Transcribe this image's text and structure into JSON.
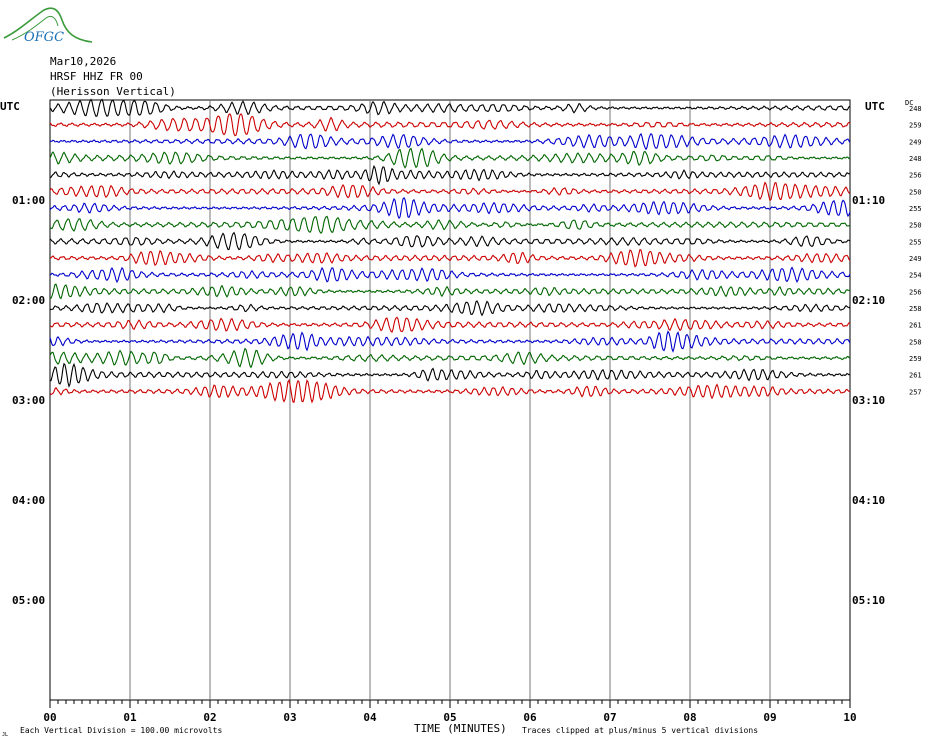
{
  "logo": {
    "text": "OFGC",
    "color": "#1a6fb5",
    "swoosh_color": "#3a9a3a"
  },
  "header": {
    "date": "Mar10,2026",
    "station": "HRSF HHZ FR 00",
    "description": "(Herisson Vertical)"
  },
  "chart_data": {
    "type": "line",
    "left_axis_title": "UTC",
    "right_axis_title": "UTC",
    "dc_header": "DC",
    "left_time_labels": [
      "01:00",
      "02:00",
      "03:00",
      "04:00",
      "05:00"
    ],
    "right_time_labels": [
      "01:10",
      "02:10",
      "03:10",
      "04:10",
      "05:10"
    ],
    "x_tick_labels": [
      "00",
      "01",
      "02",
      "03",
      "04",
      "05",
      "06",
      "07",
      "08",
      "09",
      "10"
    ],
    "xlabel": "TIME (MINUTES)",
    "xlim": [
      0,
      10
    ],
    "trace_colors": [
      "#000000",
      "#cc0000",
      "#0000cc",
      "#006600"
    ],
    "dc_offsets": [
      248,
      259,
      249,
      248,
      256,
      250,
      255,
      250,
      255,
      249,
      254,
      256,
      258,
      261,
      258,
      259,
      261,
      257
    ],
    "footer_left": "Each Vertical Division =  100.00 microvolts",
    "footer_right": "Traces clipped at plus/minus 5 vertical divisions",
    "footer_mark": "JL"
  }
}
